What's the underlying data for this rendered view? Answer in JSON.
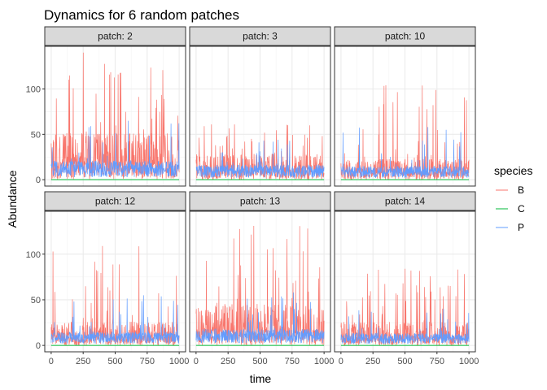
{
  "chart_data": {
    "type": "line",
    "title": "Dynamics for 6 random patches",
    "xlabel": "time",
    "ylabel": "Abundance",
    "xlim": [
      -50,
      1050
    ],
    "ylim": [
      -7,
      147
    ],
    "x_ticks": [
      0,
      250,
      500,
      750,
      1000
    ],
    "y_ticks": [
      0,
      50,
      100
    ],
    "grid": true,
    "legend": {
      "title": "species",
      "position": "right",
      "entries": [
        "B",
        "C",
        "P"
      ]
    },
    "series_colors": {
      "B": "#F8766D",
      "C": "#00BA38",
      "P": "#619CFF"
    },
    "panels": [
      {
        "label": "patch: 2",
        "B_peak": 140,
        "B_typical": 40,
        "P_peak": 65,
        "P_typical": 14,
        "C_level": 0
      },
      {
        "label": "patch: 3",
        "B_peak": 61,
        "B_typical": 22,
        "P_peak": 44,
        "P_typical": 11,
        "C_level": 0
      },
      {
        "label": "patch: 10",
        "B_peak": 104,
        "B_typical": 18,
        "P_peak": 58,
        "P_typical": 10,
        "C_level": 0
      },
      {
        "label": "patch: 12",
        "B_peak": 109,
        "B_typical": 20,
        "P_peak": 55,
        "P_typical": 10,
        "C_level": 0
      },
      {
        "label": "patch: 13",
        "B_peak": 131,
        "B_typical": 35,
        "P_peak": 58,
        "P_typical": 12,
        "C_level": 0
      },
      {
        "label": "patch: 14",
        "B_peak": 84,
        "B_typical": 20,
        "P_peak": 40,
        "P_typical": 9,
        "C_level": 0
      }
    ]
  }
}
